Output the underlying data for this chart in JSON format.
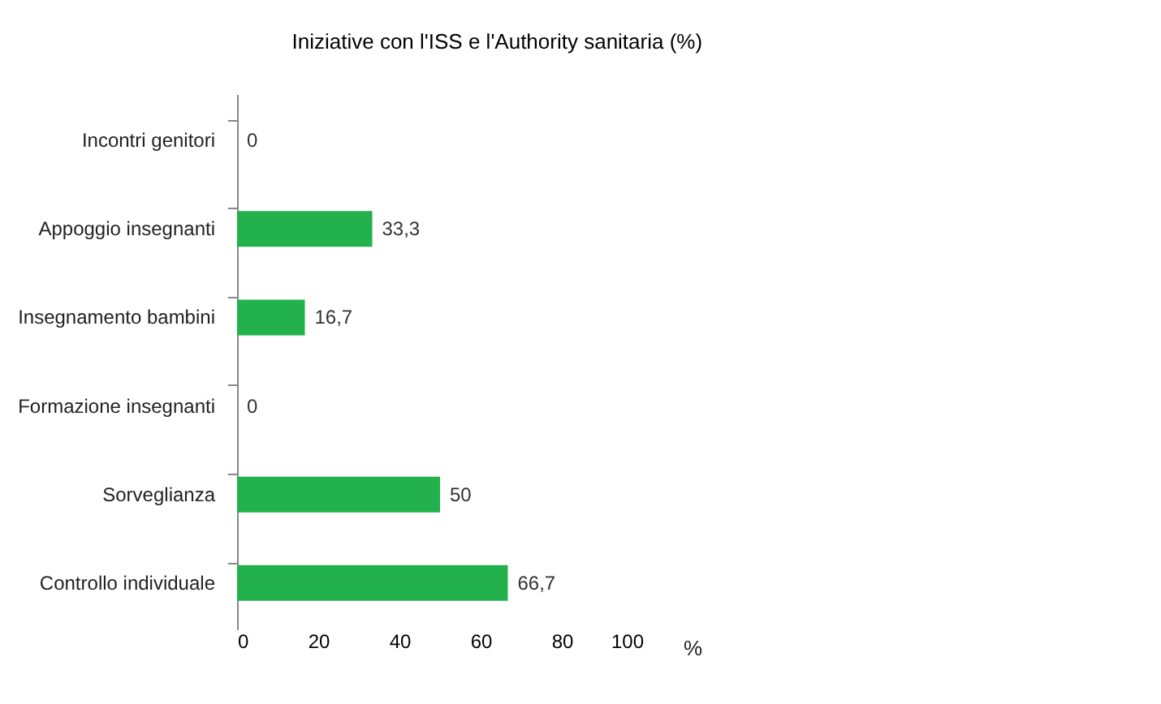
{
  "chart_data": {
    "type": "bar",
    "orientation": "horizontal",
    "title": "Iniziative con l'ISS e l'Authority sanitaria (%)",
    "xlabel": "%",
    "categories": [
      "Incontri genitori",
      "Appoggio insegnanti",
      "Insegnamento bambini",
      "Formazione insegnanti",
      "Sorveglianza",
      "Controllo individuale"
    ],
    "values": [
      0,
      33.3,
      16.7,
      0,
      50,
      66.7
    ],
    "value_labels": [
      "0",
      "33,3",
      "16,7",
      "0",
      "50",
      "66,7"
    ],
    "color": "#22b14c",
    "xlim": [
      0,
      100
    ],
    "xticks": [
      0,
      20,
      40,
      60,
      80,
      100
    ],
    "grid": false
  }
}
